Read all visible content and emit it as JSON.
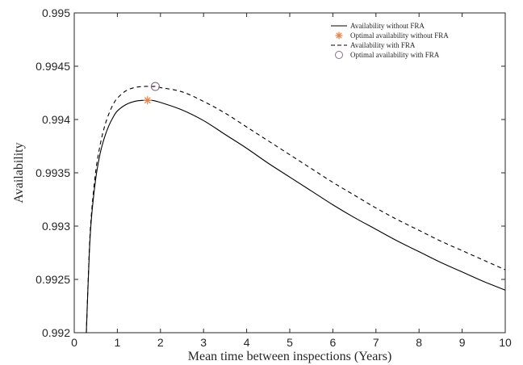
{
  "chart_data": {
    "type": "line",
    "title": "",
    "xlabel": "Mean time between inspections (Years)",
    "ylabel": "Availability",
    "xlim": [
      0,
      10
    ],
    "ylim": [
      0.992,
      0.995
    ],
    "xticks": [
      0,
      1,
      2,
      3,
      4,
      5,
      6,
      7,
      8,
      9,
      10
    ],
    "xtick_labels": [
      "0",
      "1",
      "2",
      "3",
      "4",
      "5",
      "6",
      "7",
      "8",
      "9",
      "10"
    ],
    "yticks": [
      0.992,
      0.9925,
      0.993,
      0.9935,
      0.994,
      0.9945,
      0.995
    ],
    "ytick_labels": [
      "0.992",
      "0.9925",
      "0.993",
      "0.9935",
      "0.994",
      "0.9945",
      "0.995"
    ],
    "grid": false,
    "legend_position": "top-right",
    "series": [
      {
        "name": "Availability without FRA",
        "style": "solid",
        "color": "#000000",
        "x": [
          0.28,
          0.35,
          0.4,
          0.5,
          0.6,
          0.7,
          0.8,
          0.9,
          1.0,
          1.2,
          1.4,
          1.6,
          1.7,
          1.8,
          2.0,
          2.5,
          3.0,
          3.5,
          4.0,
          4.5,
          5.0,
          5.5,
          6.0,
          6.5,
          7.0,
          7.5,
          8.0,
          8.5,
          9.0,
          9.5,
          10.0
        ],
        "y": [
          0.992,
          0.99275,
          0.99308,
          0.99345,
          0.99368,
          0.99383,
          0.99394,
          0.99402,
          0.99408,
          0.99414,
          0.99417,
          0.99418,
          0.99418,
          0.99418,
          0.99416,
          0.99409,
          0.99399,
          0.99386,
          0.99373,
          0.99359,
          0.99346,
          0.99333,
          0.9932,
          0.99308,
          0.99297,
          0.99286,
          0.99276,
          0.99266,
          0.99257,
          0.99248,
          0.9924
        ]
      },
      {
        "name": "Availability with FRA",
        "style": "dashed",
        "color": "#000000",
        "x": [
          0.28,
          0.35,
          0.4,
          0.5,
          0.6,
          0.7,
          0.8,
          0.9,
          1.0,
          1.2,
          1.4,
          1.6,
          1.8,
          1.9,
          2.0,
          2.5,
          3.0,
          3.5,
          4.0,
          4.5,
          5.0,
          5.5,
          6.0,
          6.5,
          7.0,
          7.5,
          8.0,
          8.5,
          9.0,
          9.5,
          10.0
        ],
        "y": [
          0.992,
          0.99278,
          0.99312,
          0.99352,
          0.99376,
          0.99393,
          0.99405,
          0.99414,
          0.9942,
          0.99427,
          0.9943,
          0.99431,
          0.99431,
          0.99431,
          0.9943,
          0.99426,
          0.99417,
          0.99406,
          0.99393,
          0.9938,
          0.99367,
          0.99354,
          0.99341,
          0.99329,
          0.99317,
          0.99306,
          0.99296,
          0.99286,
          0.99277,
          0.99268,
          0.99259
        ]
      }
    ],
    "markers": [
      {
        "name": "Optimal availability without FRA",
        "symbol": "asterisk",
        "color": "#e8834a",
        "x": 1.7,
        "y": 0.99418
      },
      {
        "name": "Optimal availability with FRA",
        "symbol": "circle",
        "color": "#8a6a8a",
        "x": 1.88,
        "y": 0.99431
      }
    ],
    "legend": [
      {
        "label": "Availability without FRA",
        "kind": "solid-line"
      },
      {
        "label": "Optimal availability without FRA",
        "kind": "asterisk"
      },
      {
        "label": "Availability with FRA",
        "kind": "dashed-line"
      },
      {
        "label": "Optimal availability with FRA",
        "kind": "circle"
      }
    ]
  }
}
